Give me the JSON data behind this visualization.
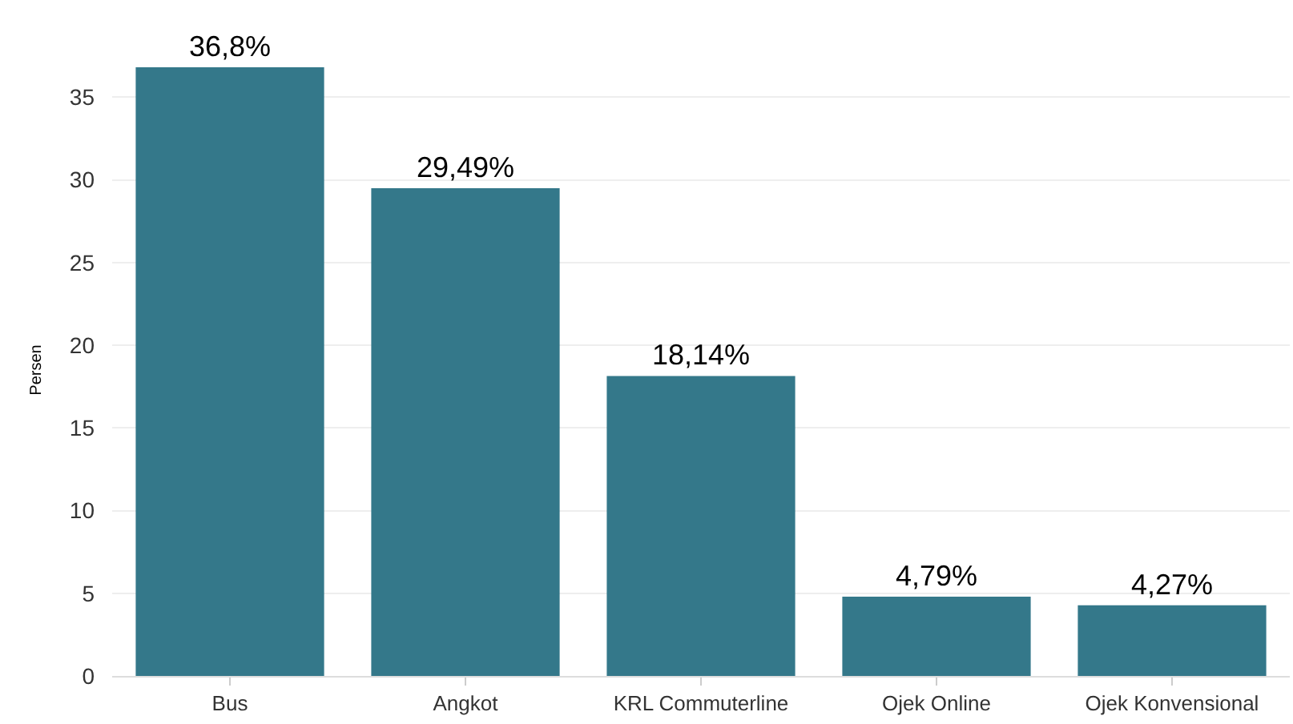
{
  "chart_data": {
    "type": "bar",
    "ylabel": "Persen",
    "categories": [
      "Bus",
      "Angkot",
      "KRL Commuterline",
      "Ojek Online",
      "Ojek Konvensional"
    ],
    "values": [
      36.8,
      29.49,
      18.14,
      4.79,
      4.27
    ],
    "value_labels": [
      "36,8%",
      "29,49%",
      "18,14%",
      "4,79%",
      "4,27%"
    ],
    "color": "#34788a",
    "ylim": [
      0,
      37
    ],
    "yticks": [
      0,
      5,
      10,
      15,
      20,
      25,
      30,
      35
    ],
    "grid": "y",
    "legend": false
  }
}
